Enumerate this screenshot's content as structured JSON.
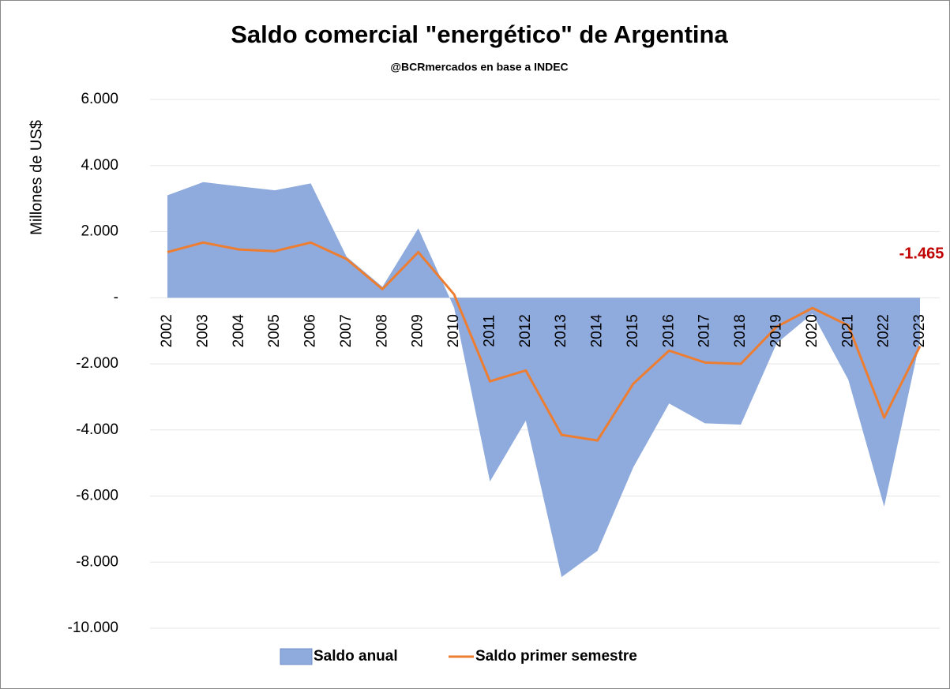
{
  "chart_data": {
    "type": "area_line",
    "title": "Saldo comercial \"energético\" de Argentina",
    "subtitle": "@BCRmercados en base a INDEC",
    "y_label": "Millones de US$",
    "categories": [
      "2002",
      "2003",
      "2004",
      "2005",
      "2006",
      "2007",
      "2008",
      "2009",
      "2010",
      "2011",
      "2012",
      "2013",
      "2014",
      "2015",
      "2016",
      "2017",
      "2018",
      "2019",
      "2020",
      "2021",
      "2022",
      "2023"
    ],
    "series": [
      {
        "name": "Saldo anual",
        "kind": "area",
        "color": "#8faadc",
        "values": [
          3100,
          3500,
          3370,
          3250,
          3460,
          1240,
          330,
          2100,
          -300,
          -5560,
          -3720,
          -8450,
          -7660,
          -5130,
          -3200,
          -3800,
          -3840,
          -1380,
          -480,
          -2480,
          -6320,
          -1300
        ]
      },
      {
        "name": "Saldo primer semestre",
        "kind": "line",
        "color": "#ed7d31",
        "values": [
          1380,
          1670,
          1460,
          1410,
          1670,
          1170,
          260,
          1380,
          100,
          -2530,
          -2200,
          -4150,
          -4320,
          -2600,
          -1600,
          -1960,
          -2000,
          -880,
          -310,
          -840,
          -3630,
          -1465
        ],
        "value_labels": [
          null,
          null,
          null,
          null,
          null,
          null,
          null,
          null,
          null,
          null,
          null,
          null,
          null,
          null,
          null,
          null,
          null,
          null,
          null,
          null,
          null,
          "-1.465"
        ],
        "value_label_color": "#c00000"
      }
    ],
    "ylim": [
      -10000,
      6000
    ],
    "yticks": [
      {
        "value": -10000,
        "label": "-10.000"
      },
      {
        "value": -8000,
        "label": "-8.000"
      },
      {
        "value": -6000,
        "label": "-6.000"
      },
      {
        "value": -4000,
        "label": "-4.000"
      },
      {
        "value": -2000,
        "label": "-2.000"
      },
      {
        "value": 0,
        "label": "-"
      },
      {
        "value": 2000,
        "label": "2.000"
      },
      {
        "value": 4000,
        "label": "4.000"
      },
      {
        "value": 6000,
        "label": "6.000"
      }
    ],
    "grid": true,
    "legend": "bottom"
  }
}
